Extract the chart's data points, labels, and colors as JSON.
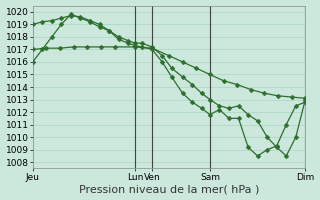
{
  "background_color": "#cce8dd",
  "grid_color": "#aad4c4",
  "line_color": "#2d6e2d",
  "marker": "D",
  "marker_size": 2.5,
  "line_width": 0.9,
  "xlabel": "Pression niveau de la mer( hPa )",
  "xlabel_fontsize": 8,
  "tick_fontsize": 6.5,
  "ylim": [
    1007.5,
    1020.5
  ],
  "yticks": [
    1008,
    1009,
    1010,
    1011,
    1012,
    1013,
    1014,
    1015,
    1016,
    1017,
    1018,
    1019,
    1020
  ],
  "xlim": [
    0,
    10.0
  ],
  "xtick_labels": [
    "Jeu",
    "Lun",
    "Ven",
    "Sam",
    "Dim"
  ],
  "xtick_positions": [
    0,
    3.75,
    4.375,
    6.5,
    10.0
  ],
  "vline_positions": [
    3.75,
    4.375,
    6.5,
    10.0
  ],
  "series": [
    {
      "x": [
        0,
        0.35,
        0.7,
        1.05,
        1.4,
        1.75,
        2.1,
        2.45,
        2.8,
        3.15,
        3.5,
        3.75,
        4.0,
        4.375,
        4.75,
        5.1,
        5.5,
        5.85,
        6.2,
        6.5,
        6.85,
        7.2,
        7.55,
        7.9,
        8.25,
        8.6,
        8.95,
        9.3,
        9.65,
        10.0
      ],
      "y": [
        1019.0,
        1019.2,
        1019.3,
        1019.5,
        1019.7,
        1019.6,
        1019.3,
        1019.0,
        1018.5,
        1018.0,
        1017.7,
        1017.5,
        1017.5,
        1017.2,
        1016.5,
        1015.5,
        1014.8,
        1014.2,
        1013.5,
        1013.0,
        1012.5,
        1012.3,
        1012.5,
        1011.8,
        1011.3,
        1010.0,
        1009.2,
        1008.5,
        1010.0,
        1013.0
      ]
    },
    {
      "x": [
        0,
        0.5,
        1.0,
        1.5,
        2.0,
        2.5,
        3.0,
        3.75,
        4.375,
        5.0,
        5.5,
        6.0,
        6.5,
        7.0,
        7.5,
        8.0,
        8.5,
        9.0,
        9.5,
        10.0
      ],
      "y": [
        1017.0,
        1017.1,
        1017.1,
        1017.2,
        1017.2,
        1017.2,
        1017.2,
        1017.2,
        1017.1,
        1016.5,
        1016.0,
        1015.5,
        1015.0,
        1014.5,
        1014.2,
        1013.8,
        1013.5,
        1013.3,
        1013.2,
        1013.1
      ]
    },
    {
      "x": [
        0,
        0.35,
        0.7,
        1.05,
        1.4,
        1.75,
        2.1,
        2.45,
        2.8,
        3.15,
        3.5,
        3.75,
        4.0,
        4.375,
        4.75,
        5.1,
        5.5,
        5.85,
        6.2,
        6.5,
        6.85,
        7.2,
        7.55,
        7.9,
        8.25,
        8.6,
        8.95,
        9.3,
        9.65,
        10.0
      ],
      "y": [
        1016.0,
        1017.0,
        1018.0,
        1019.0,
        1019.8,
        1019.5,
        1019.2,
        1018.8,
        1018.5,
        1017.8,
        1017.5,
        1017.3,
        1017.2,
        1017.0,
        1016.0,
        1014.8,
        1013.5,
        1012.8,
        1012.3,
        1011.8,
        1012.2,
        1011.5,
        1011.5,
        1009.2,
        1008.5,
        1009.0,
        1009.3,
        1011.0,
        1012.5,
        1012.8
      ]
    }
  ]
}
